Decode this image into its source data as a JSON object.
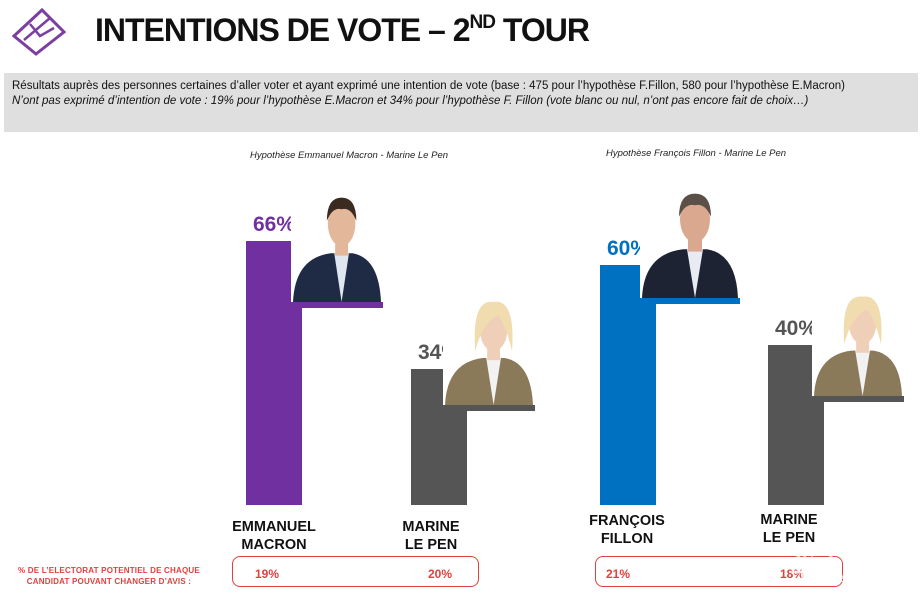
{
  "header": {
    "title_main": "INTENTIONS DE VOTE – 2",
    "title_sup": "ND",
    "title_end": " TOUR",
    "logo_icon": "ballot-box-icon"
  },
  "info": {
    "line1": "Résultats auprès des personnes certaines d’aller voter et ayant exprimé une intention de vote (base : 475 pour l’hypothèse F.Fillon, 580 pour l’hypothèse E.Macron)",
    "line2": "N’ont pas exprimé d’intention de vote : 19% pour l’hypothèse E.Macron et 34% pour l’hypothèse F. Fillon (vote blanc ou nul, n’ont pas encore fait de choix…)"
  },
  "footer": {
    "label_line1": "% DE L’ELECTORAT POTENTIEL DE CHAQUE",
    "label_line2": "CANDIDAT POUVANT CHANGER D’AVIS :"
  },
  "watermark": {
    "text": "华人街",
    "sub": "HUAREN JIE"
  },
  "chart_data": [
    {
      "type": "bar",
      "title": "Hypothèse Emmanuel Macron - Marine Le Pen",
      "ylim": [
        0,
        100
      ],
      "categories": [
        "EMMANUEL MACRON",
        "MARINE LE PEN"
      ],
      "names_line1": [
        "EMMANUEL",
        "MARINE"
      ],
      "names_line2": [
        "MACRON",
        "LE PEN"
      ],
      "values": [
        66,
        34
      ],
      "labels": [
        "66%",
        "34%"
      ],
      "colors": [
        "#7030a0",
        "#555555"
      ],
      "name_colors": [
        "#7030a0",
        "#333333"
      ],
      "change_of_mind": [
        "19%",
        "20%"
      ],
      "photos": [
        "emmanuel-macron-photo",
        "marine-le-pen-photo"
      ]
    },
    {
      "type": "bar",
      "title": "Hypothèse François Fillon - Marine Le Pen",
      "ylim": [
        0,
        100
      ],
      "categories": [
        "FRANÇOIS FILLON",
        "MARINE LE PEN"
      ],
      "names_line1": [
        "FRANÇOIS",
        "MARINE"
      ],
      "names_line2": [
        "FILLON",
        "LE PEN"
      ],
      "values": [
        60,
        40
      ],
      "labels": [
        "60%",
        "40%"
      ],
      "colors": [
        "#0070c0",
        "#555555"
      ],
      "name_colors": [
        "#0070c0",
        "#333333"
      ],
      "change_of_mind": [
        "21%",
        "18%"
      ],
      "photos": [
        "francois-fillon-photo",
        "marine-le-pen-photo"
      ]
    }
  ]
}
